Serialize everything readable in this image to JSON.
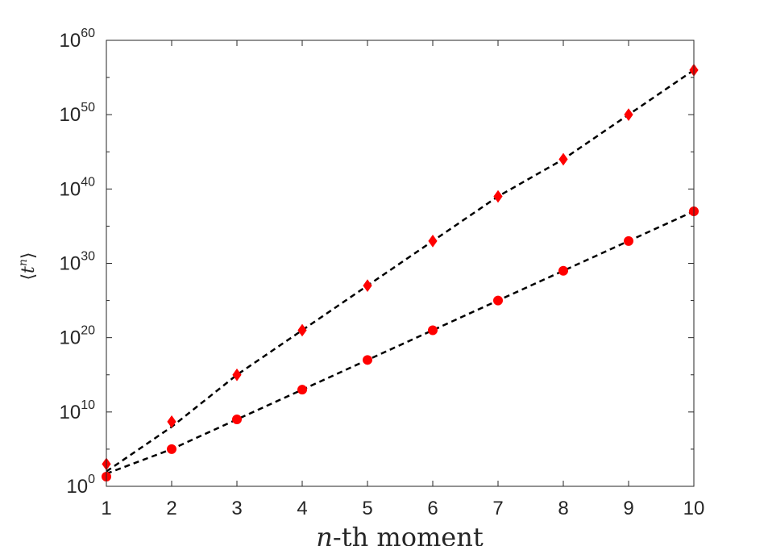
{
  "chart_data": {
    "type": "scatter",
    "title": "",
    "xlabel": "n-th moment",
    "xlabel_var": "n",
    "xlabel_rest": "-th moment",
    "ylabel": "⟨tⁿ⟩",
    "ylabel_base": "t",
    "ylabel_exp": "n",
    "xlim": [
      1,
      10
    ],
    "ylim": [
      1,
      1e+60
    ],
    "yscale": "log",
    "grid": false,
    "x_ticks": [
      1,
      2,
      3,
      4,
      5,
      6,
      7,
      8,
      9,
      10
    ],
    "y_ticks": [
      {
        "base": "10",
        "exp": "0"
      },
      {
        "base": "10",
        "exp": "10"
      },
      {
        "base": "10",
        "exp": "20"
      },
      {
        "base": "10",
        "exp": "30"
      },
      {
        "base": "10",
        "exp": "40"
      },
      {
        "base": "10",
        "exp": "50"
      },
      {
        "base": "10",
        "exp": "60"
      }
    ],
    "marker_color": "#ff0000",
    "fit_line_color": "#000000",
    "series": [
      {
        "marker": "diamond",
        "x": [
          1,
          2,
          3,
          4,
          5,
          6,
          7,
          8,
          9,
          10
        ],
        "y": [
          1000.0,
          500000000.0,
          1000000000000000.0,
          1e+21,
          1e+27,
          1e+33,
          1e+39,
          1e+44,
          1e+50,
          1e+56
        ],
        "fit": [
          100.0,
          100000000.0,
          1000000000000000.0,
          1e+21,
          1e+27,
          1e+33,
          1e+39,
          1e+44,
          1e+50,
          1e+56
        ]
      },
      {
        "marker": "circle",
        "x": [
          1,
          2,
          3,
          4,
          5,
          6,
          7,
          8,
          9,
          10
        ],
        "y": [
          20.0,
          100000.0,
          1000000000.0,
          10000000000000.0,
          1e+17,
          1e+21,
          1e+25,
          1e+29,
          1e+33,
          1e+37
        ],
        "fit": [
          50.0,
          100000.0,
          1000000000.0,
          10000000000000.0,
          1e+17,
          1e+21,
          1e+25,
          1e+29,
          1e+33,
          1e+37
        ]
      }
    ]
  }
}
